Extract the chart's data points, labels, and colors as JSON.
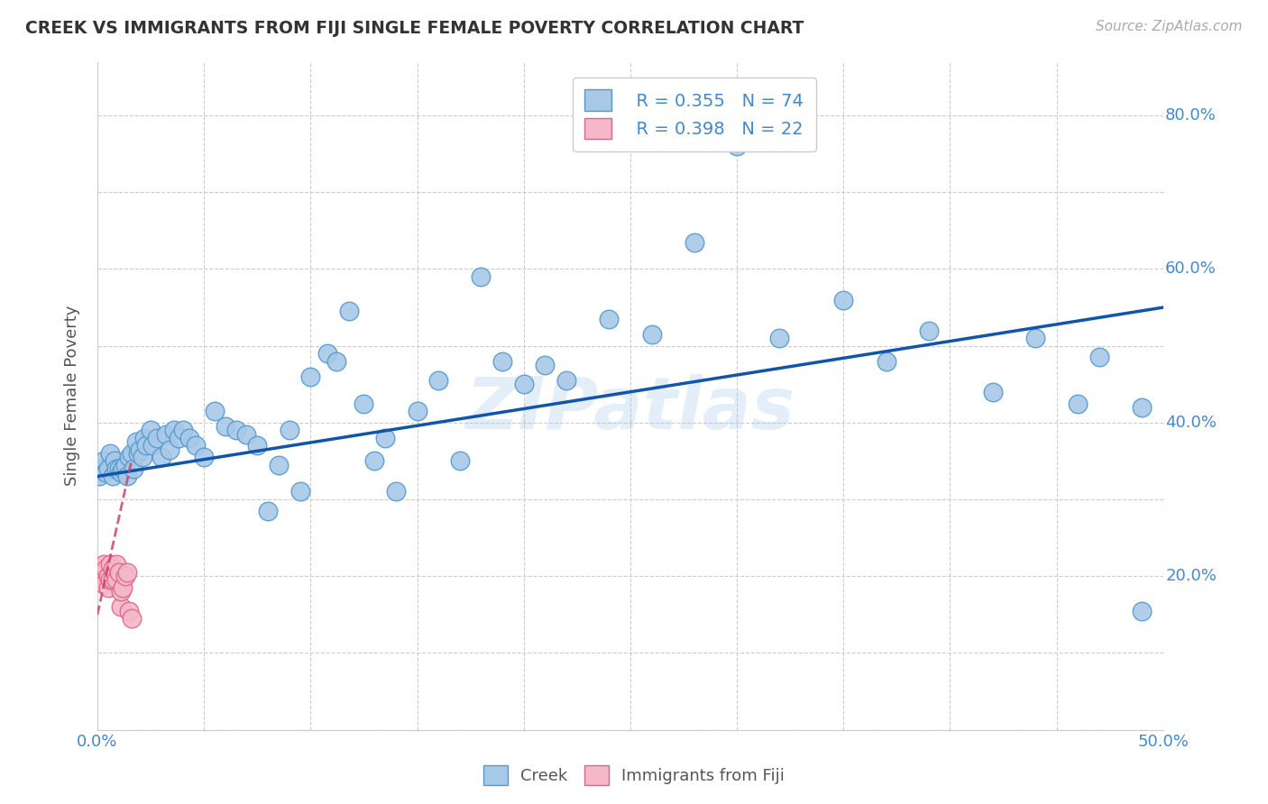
{
  "title": "CREEK VS IMMIGRANTS FROM FIJI SINGLE FEMALE POVERTY CORRELATION CHART",
  "source": "Source: ZipAtlas.com",
  "ylabel": "Single Female Poverty",
  "xlim": [
    0.0,
    0.5
  ],
  "ylim": [
    0.0,
    0.87
  ],
  "xticks": [
    0.0,
    0.05,
    0.1,
    0.15,
    0.2,
    0.25,
    0.3,
    0.35,
    0.4,
    0.45,
    0.5
  ],
  "yticks": [
    0.0,
    0.1,
    0.2,
    0.3,
    0.4,
    0.5,
    0.6,
    0.7,
    0.8
  ],
  "creek_color": "#a8c8e8",
  "creek_edge_color": "#5599cc",
  "fiji_color": "#f4b8c8",
  "fiji_edge_color": "#dd6688",
  "trend_creek_color": "#1155aa",
  "trend_fiji_color": "#cc4466",
  "background_color": "#ffffff",
  "grid_color": "#cccccc",
  "legend_r1": "R = 0.355",
  "legend_n1": "N = 74",
  "legend_r2": "R = 0.398",
  "legend_n2": "N = 22",
  "watermark": "ZIPatlas",
  "creek_x": [
    0.001,
    0.002,
    0.003,
    0.004,
    0.005,
    0.006,
    0.007,
    0.008,
    0.009,
    0.01,
    0.011,
    0.012,
    0.013,
    0.014,
    0.015,
    0.016,
    0.017,
    0.018,
    0.019,
    0.02,
    0.021,
    0.022,
    0.023,
    0.025,
    0.026,
    0.028,
    0.03,
    0.032,
    0.034,
    0.036,
    0.038,
    0.04,
    0.043,
    0.046,
    0.05,
    0.055,
    0.06,
    0.065,
    0.07,
    0.075,
    0.08,
    0.085,
    0.09,
    0.095,
    0.1,
    0.108,
    0.112,
    0.118,
    0.125,
    0.13,
    0.135,
    0.14,
    0.15,
    0.16,
    0.17,
    0.18,
    0.19,
    0.2,
    0.21,
    0.22,
    0.24,
    0.26,
    0.28,
    0.3,
    0.32,
    0.35,
    0.37,
    0.39,
    0.42,
    0.44,
    0.46,
    0.47,
    0.49,
    0.49
  ],
  "creek_y": [
    0.33,
    0.34,
    0.35,
    0.335,
    0.34,
    0.36,
    0.33,
    0.35,
    0.34,
    0.34,
    0.335,
    0.34,
    0.345,
    0.33,
    0.355,
    0.36,
    0.34,
    0.375,
    0.36,
    0.365,
    0.355,
    0.38,
    0.37,
    0.39,
    0.37,
    0.38,
    0.355,
    0.385,
    0.365,
    0.39,
    0.38,
    0.39,
    0.38,
    0.37,
    0.355,
    0.415,
    0.395,
    0.39,
    0.385,
    0.37,
    0.285,
    0.345,
    0.39,
    0.31,
    0.46,
    0.49,
    0.48,
    0.545,
    0.425,
    0.35,
    0.38,
    0.31,
    0.415,
    0.455,
    0.35,
    0.59,
    0.48,
    0.45,
    0.475,
    0.455,
    0.535,
    0.515,
    0.635,
    0.76,
    0.51,
    0.56,
    0.48,
    0.52,
    0.44,
    0.51,
    0.425,
    0.485,
    0.42,
    0.155
  ],
  "fiji_x": [
    0.001,
    0.002,
    0.003,
    0.003,
    0.004,
    0.005,
    0.005,
    0.006,
    0.006,
    0.007,
    0.007,
    0.008,
    0.009,
    0.009,
    0.01,
    0.011,
    0.011,
    0.012,
    0.013,
    0.014,
    0.015,
    0.016
  ],
  "fiji_y": [
    0.2,
    0.195,
    0.215,
    0.19,
    0.21,
    0.2,
    0.185,
    0.215,
    0.195,
    0.195,
    0.21,
    0.205,
    0.195,
    0.215,
    0.205,
    0.16,
    0.18,
    0.185,
    0.2,
    0.205,
    0.155,
    0.145
  ]
}
